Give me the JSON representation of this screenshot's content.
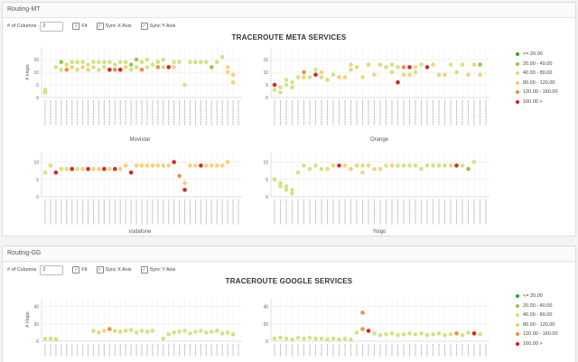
{
  "panels": [
    {
      "header": "Routing-MT",
      "toolbar": {
        "columns_label": "# of Columns",
        "columns_value": "2",
        "fit_label": "Fit",
        "syncx_label": "Sync X Axis",
        "syncy_label": "Sync Y Axis"
      },
      "title": "TRACEROUTE META SERVICES",
      "legend": [
        {
          "label": "<= 20.00",
          "color": "#2ca02c"
        },
        {
          "label": "20.00 - 40.00",
          "color": "#8cc63f"
        },
        {
          "label": "40.00 - 80.00",
          "color": "#cfe27a"
        },
        {
          "label": "80.00 - 120.00",
          "color": "#f4d06f"
        },
        {
          "label": "120.00 - 160.00",
          "color": "#f08a3c"
        },
        {
          "label": "160.00 >",
          "color": "#d7191c"
        }
      ]
    },
    {
      "header": "Routing-GG",
      "toolbar": {
        "columns_label": "# of Columns",
        "columns_value": "2",
        "fit_label": "Fit",
        "syncx_label": "Sync X Axis",
        "syncy_label": "Sync Y Axis"
      },
      "title": "TRACEROUTE GOOGLE SERVICES",
      "legend": [
        {
          "label": "<= 20.00",
          "color": "#2ca02c"
        },
        {
          "label": "20.00 - 40.00",
          "color": "#8cc63f"
        },
        {
          "label": "40.00 - 80.00",
          "color": "#cfe27a"
        },
        {
          "label": "80.00 - 120.00",
          "color": "#f4d06f"
        },
        {
          "label": "120.00 - 160.00",
          "color": "#f08a3c"
        },
        {
          "label": "160.00 >",
          "color": "#d7191c"
        }
      ]
    }
  ],
  "chart_data": [
    {
      "type": "scatter",
      "title": "",
      "xlabel": "Movistar",
      "ylabel": "# Hops",
      "ylim": [
        0,
        20
      ],
      "yticks": [
        0,
        5,
        10,
        15
      ],
      "points": [
        [
          1,
          3,
          2
        ],
        [
          1,
          2,
          2
        ],
        [
          3,
          12,
          2
        ],
        [
          4,
          14,
          1
        ],
        [
          4,
          11,
          2
        ],
        [
          5,
          13,
          2
        ],
        [
          5,
          11,
          4
        ],
        [
          6,
          14,
          2
        ],
        [
          6,
          12,
          3
        ],
        [
          7,
          11,
          2
        ],
        [
          7,
          14,
          2
        ],
        [
          8,
          12,
          3
        ],
        [
          8,
          14,
          2
        ],
        [
          9,
          11,
          2
        ],
        [
          9,
          13,
          2
        ],
        [
          10,
          12,
          2
        ],
        [
          10,
          14,
          2
        ],
        [
          11,
          11,
          2
        ],
        [
          11,
          14,
          2
        ],
        [
          12,
          12,
          2
        ],
        [
          12,
          14,
          2
        ],
        [
          13,
          11,
          5
        ],
        [
          13,
          14,
          2
        ],
        [
          14,
          11,
          4
        ],
        [
          14,
          13,
          2
        ],
        [
          15,
          11,
          5
        ],
        [
          15,
          14,
          2
        ],
        [
          16,
          12,
          3
        ],
        [
          16,
          14,
          2
        ],
        [
          17,
          11,
          2
        ],
        [
          17,
          13,
          1
        ],
        [
          18,
          12,
          2
        ],
        [
          18,
          15,
          1
        ],
        [
          19,
          11,
          4
        ],
        [
          19,
          14,
          2
        ],
        [
          20,
          12,
          2
        ],
        [
          20,
          15,
          2
        ],
        [
          21,
          13,
          2
        ],
        [
          22,
          12,
          4
        ],
        [
          22,
          14,
          2
        ],
        [
          23,
          12,
          2
        ],
        [
          23,
          15,
          2
        ],
        [
          24,
          12,
          5
        ],
        [
          25,
          12,
          3
        ],
        [
          25,
          14,
          2
        ],
        [
          26,
          14,
          2
        ],
        [
          27,
          5,
          2
        ],
        [
          28,
          14,
          2
        ],
        [
          29,
          14,
          2
        ],
        [
          30,
          14,
          2
        ],
        [
          31,
          14,
          2
        ],
        [
          32,
          12,
          1
        ],
        [
          33,
          14,
          2
        ],
        [
          34,
          16,
          2
        ],
        [
          35,
          12,
          3
        ],
        [
          35,
          10,
          3
        ],
        [
          36,
          9,
          3
        ],
        [
          36,
          6,
          3
        ]
      ]
    },
    {
      "type": "scatter",
      "title": "",
      "xlabel": "Orange",
      "ylabel": "",
      "ylim": [
        0,
        20
      ],
      "yticks": [
        0,
        5,
        10,
        15
      ],
      "points": [
        [
          1,
          5,
          5
        ],
        [
          1,
          3,
          2
        ],
        [
          2,
          4,
          3
        ],
        [
          2,
          2,
          2
        ],
        [
          3,
          5,
          2
        ],
        [
          3,
          7,
          2
        ],
        [
          4,
          6,
          2
        ],
        [
          4,
          4,
          2
        ],
        [
          5,
          8,
          2
        ],
        [
          6,
          10,
          4
        ],
        [
          6,
          8,
          3
        ],
        [
          7,
          8,
          2
        ],
        [
          8,
          9,
          5
        ],
        [
          8,
          11,
          2
        ],
        [
          9,
          8,
          2
        ],
        [
          9,
          10,
          3
        ],
        [
          10,
          7,
          2
        ],
        [
          11,
          9,
          2
        ],
        [
          12,
          8,
          3
        ],
        [
          13,
          8,
          3
        ],
        [
          14,
          13,
          3
        ],
        [
          14,
          11,
          2
        ],
        [
          15,
          12,
          2
        ],
        [
          16,
          8,
          3
        ],
        [
          17,
          13,
          2
        ],
        [
          18,
          9,
          3
        ],
        [
          19,
          13,
          2
        ],
        [
          20,
          12,
          2
        ],
        [
          21,
          13,
          3
        ],
        [
          21,
          10,
          2
        ],
        [
          22,
          6,
          5
        ],
        [
          22,
          12,
          2
        ],
        [
          23,
          9,
          3
        ],
        [
          23,
          12,
          4
        ],
        [
          24,
          12,
          5
        ],
        [
          24,
          9,
          3
        ],
        [
          25,
          12,
          3
        ],
        [
          25,
          10,
          2
        ],
        [
          26,
          13,
          2
        ],
        [
          27,
          12,
          5
        ],
        [
          28,
          13,
          3
        ],
        [
          29,
          9,
          3
        ],
        [
          30,
          9,
          3
        ],
        [
          31,
          13,
          2
        ],
        [
          32,
          10,
          3
        ],
        [
          33,
          13,
          2
        ],
        [
          34,
          9,
          3
        ],
        [
          35,
          13,
          3
        ],
        [
          36,
          9,
          3
        ],
        [
          36,
          13,
          1
        ]
      ]
    },
    {
      "type": "scatter",
      "title": "",
      "xlabel": "vodafone",
      "ylabel": "",
      "ylim": [
        0,
        13
      ],
      "yticks": [
        0,
        5,
        10
      ],
      "points": [
        [
          1,
          7,
          2
        ],
        [
          2,
          9,
          3
        ],
        [
          3,
          7,
          5
        ],
        [
          4,
          8,
          3
        ],
        [
          5,
          8,
          3
        ],
        [
          6,
          8,
          5
        ],
        [
          7,
          8,
          2
        ],
        [
          8,
          8,
          3
        ],
        [
          9,
          8,
          5
        ],
        [
          10,
          8,
          3
        ],
        [
          11,
          8,
          3
        ],
        [
          12,
          8,
          5
        ],
        [
          13,
          8,
          3
        ],
        [
          14,
          8,
          5
        ],
        [
          15,
          8,
          3
        ],
        [
          16,
          9,
          3
        ],
        [
          17,
          7,
          5
        ],
        [
          18,
          9,
          3
        ],
        [
          19,
          9,
          3
        ],
        [
          20,
          9,
          3
        ],
        [
          21,
          9,
          3
        ],
        [
          22,
          9,
          3
        ],
        [
          23,
          9,
          3
        ],
        [
          24,
          9,
          3
        ],
        [
          25,
          10,
          5
        ],
        [
          26,
          6,
          4
        ],
        [
          27,
          4,
          3
        ],
        [
          27,
          2,
          5
        ],
        [
          28,
          9,
          3
        ],
        [
          29,
          9,
          3
        ],
        [
          30,
          9,
          5
        ],
        [
          31,
          9,
          3
        ],
        [
          32,
          9,
          3
        ],
        [
          33,
          9,
          3
        ],
        [
          34,
          9,
          3
        ],
        [
          35,
          10,
          3
        ]
      ]
    },
    {
      "type": "scatter",
      "title": "",
      "xlabel": "Yoigo",
      "ylabel": "",
      "ylim": [
        0,
        13
      ],
      "yticks": [
        0,
        5,
        10
      ],
      "points": [
        [
          1,
          5,
          2
        ],
        [
          2,
          4,
          2
        ],
        [
          2,
          3,
          2
        ],
        [
          3,
          3,
          2
        ],
        [
          3,
          2,
          2
        ],
        [
          4,
          1,
          2
        ],
        [
          4,
          2,
          2
        ],
        [
          5,
          7,
          2
        ],
        [
          6,
          9,
          2
        ],
        [
          7,
          8,
          2
        ],
        [
          8,
          9,
          2
        ],
        [
          9,
          8,
          2
        ],
        [
          10,
          8,
          2
        ],
        [
          11,
          9,
          3
        ],
        [
          12,
          9,
          5
        ],
        [
          13,
          9,
          3
        ],
        [
          14,
          8,
          3
        ],
        [
          15,
          9,
          3
        ],
        [
          16,
          7,
          2
        ],
        [
          16,
          9,
          2
        ],
        [
          17,
          9,
          2
        ],
        [
          18,
          8,
          3
        ],
        [
          19,
          8,
          3
        ],
        [
          20,
          9,
          2
        ],
        [
          21,
          9,
          3
        ],
        [
          22,
          9,
          2
        ],
        [
          23,
          9,
          2
        ],
        [
          24,
          9,
          2
        ],
        [
          25,
          9,
          3
        ],
        [
          26,
          8,
          2
        ],
        [
          27,
          9,
          2
        ],
        [
          28,
          9,
          2
        ],
        [
          29,
          9,
          3
        ],
        [
          30,
          9,
          2
        ],
        [
          31,
          9,
          3
        ],
        [
          32,
          9,
          5
        ],
        [
          33,
          9,
          2
        ],
        [
          34,
          8,
          1
        ],
        [
          35,
          10,
          2
        ]
      ]
    },
    {
      "type": "scatter",
      "title": "",
      "xlabel": "",
      "ylabel": "# Hops",
      "ylim": [
        0,
        50
      ],
      "yticks": [
        0,
        20,
        40
      ],
      "points": [
        [
          1,
          3,
          2
        ],
        [
          2,
          3,
          2
        ],
        [
          3,
          2,
          2
        ],
        [
          10,
          12,
          2
        ],
        [
          11,
          10,
          2
        ],
        [
          12,
          12,
          3
        ],
        [
          13,
          14,
          4
        ],
        [
          14,
          12,
          2
        ],
        [
          15,
          11,
          3
        ],
        [
          16,
          12,
          2
        ],
        [
          17,
          13,
          2
        ],
        [
          18,
          10,
          2
        ],
        [
          19,
          12,
          2
        ],
        [
          20,
          11,
          2
        ],
        [
          21,
          12,
          2
        ],
        [
          23,
          3,
          2
        ],
        [
          24,
          8,
          2
        ],
        [
          25,
          10,
          2
        ],
        [
          26,
          11,
          2
        ],
        [
          27,
          12,
          2
        ],
        [
          28,
          9,
          2
        ],
        [
          29,
          11,
          2
        ],
        [
          30,
          12,
          2
        ],
        [
          31,
          10,
          2
        ],
        [
          32,
          11,
          2
        ],
        [
          33,
          12,
          2
        ],
        [
          34,
          9,
          2
        ],
        [
          35,
          10,
          2
        ],
        [
          36,
          8,
          2
        ]
      ]
    },
    {
      "type": "scatter",
      "title": "",
      "xlabel": "",
      "ylabel": "",
      "ylim": [
        0,
        50
      ],
      "yticks": [
        0,
        20,
        40
      ],
      "points": [
        [
          1,
          3,
          2
        ],
        [
          2,
          4,
          2
        ],
        [
          3,
          3,
          2
        ],
        [
          4,
          2,
          2
        ],
        [
          5,
          4,
          2
        ],
        [
          6,
          3,
          2
        ],
        [
          7,
          4,
          2
        ],
        [
          8,
          3,
          2
        ],
        [
          9,
          3,
          2
        ],
        [
          10,
          2,
          2
        ],
        [
          11,
          3,
          2
        ],
        [
          12,
          2,
          2
        ],
        [
          13,
          3,
          2
        ],
        [
          14,
          2,
          2
        ],
        [
          15,
          10,
          2
        ],
        [
          16,
          14,
          4
        ],
        [
          16,
          33,
          4
        ],
        [
          17,
          12,
          5
        ],
        [
          18,
          9,
          2
        ],
        [
          19,
          7,
          2
        ],
        [
          20,
          8,
          2
        ],
        [
          21,
          9,
          2
        ],
        [
          22,
          7,
          2
        ],
        [
          23,
          8,
          2
        ],
        [
          24,
          9,
          2
        ],
        [
          25,
          8,
          2
        ],
        [
          26,
          9,
          2
        ],
        [
          27,
          7,
          2
        ],
        [
          28,
          8,
          2
        ],
        [
          29,
          9,
          2
        ],
        [
          30,
          7,
          2
        ],
        [
          31,
          8,
          2
        ],
        [
          32,
          9,
          4
        ],
        [
          33,
          7,
          2
        ],
        [
          34,
          10,
          3
        ],
        [
          35,
          9,
          5
        ],
        [
          36,
          8,
          2
        ]
      ]
    }
  ]
}
